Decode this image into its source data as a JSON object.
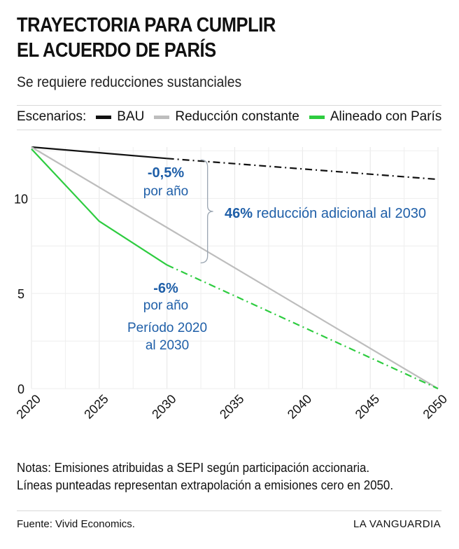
{
  "header": {
    "title_line1": "TRAYECTORIA PARA CUMPLIR",
    "title_line2": "EL ACUERDO DE PARÍS",
    "subtitle": "Se requiere reducciones sustanciales"
  },
  "legend": {
    "lead": "Escenarios:",
    "items": [
      {
        "label": "BAU",
        "color": "#111111"
      },
      {
        "label": "Reducción constante",
        "color": "#bdbdbd"
      },
      {
        "label": "Alineado con París",
        "color": "#2ecc40"
      }
    ]
  },
  "annotations": {
    "bau_rate_value": "-0,5%",
    "bau_rate_unit": "por año",
    "gap_bold": "46%",
    "gap_text": " reducción adicional al 2030",
    "paris_rate_value": "-6%",
    "paris_rate_unit": "por año",
    "period_line1": "Período 2020",
    "period_line2": "al 2030",
    "color": "#1f5fa8"
  },
  "chart_data": {
    "type": "line",
    "x_ticks": [
      2020,
      2025,
      2030,
      2035,
      2040,
      2045,
      2050
    ],
    "y_ticks": [
      0,
      5,
      10
    ],
    "xlim": [
      2020,
      2050
    ],
    "ylim": [
      0,
      12.7
    ],
    "grid": true,
    "series": [
      {
        "name": "BAU",
        "color": "#111111",
        "solid": [
          {
            "x": 2020,
            "y": 12.7
          },
          {
            "x": 2025,
            "y": 12.4
          },
          {
            "x": 2030,
            "y": 12.1
          }
        ],
        "projected": [
          {
            "x": 2030,
            "y": 12.1
          },
          {
            "x": 2050,
            "y": 11.0
          }
        ]
      },
      {
        "name": "Reducción constante",
        "color": "#bdbdbd",
        "solid": [
          {
            "x": 2020,
            "y": 12.7
          },
          {
            "x": 2050,
            "y": 0
          }
        ],
        "projected": []
      },
      {
        "name": "Alineado con París",
        "color": "#2ecc40",
        "solid": [
          {
            "x": 2020,
            "y": 12.6
          },
          {
            "x": 2025,
            "y": 8.8
          },
          {
            "x": 2030,
            "y": 6.5
          }
        ],
        "projected": [
          {
            "x": 2030,
            "y": 6.5
          },
          {
            "x": 2050,
            "y": 0
          }
        ]
      }
    ]
  },
  "notes": {
    "line1": "Notas: Emisiones atribuidas a SEPI según participación accionaria.",
    "line2": "Líneas punteadas representan extrapolación a emisiones cero en 2050."
  },
  "footer": {
    "source": "Fuente: Vivid Economics.",
    "brand": "LA VANGUARDIA"
  }
}
